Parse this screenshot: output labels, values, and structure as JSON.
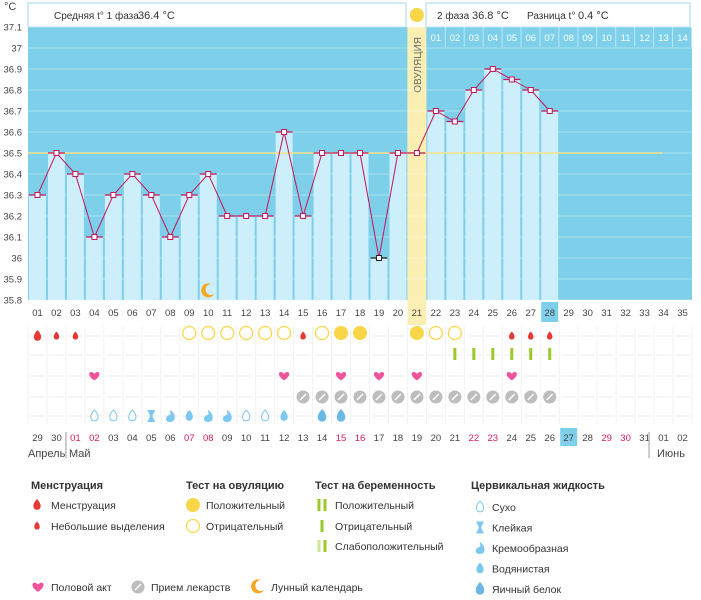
{
  "header": {
    "unit": "°C",
    "phase1_label": "Средняя t° 1 фаза",
    "phase1_value": "36.4 °C",
    "phase2_label": "2 фаза",
    "phase2_value": "36.8 °C",
    "diff_label": "Разница t°",
    "diff_value": "0.4 °C"
  },
  "ovulation_label": "ОВУЛЯЦИЯ",
  "chart_data": {
    "type": "line",
    "title": "",
    "ylabel": "°C",
    "ylim": [
      35.8,
      37.1
    ],
    "yticks": [
      "35.8",
      "35.9",
      "36",
      "36.1",
      "36.2",
      "36.3",
      "36.4",
      "36.5",
      "36.6",
      "36.7",
      "36.8",
      "36.9",
      "37",
      "37.1"
    ],
    "cycle_days": [
      "01",
      "02",
      "03",
      "04",
      "05",
      "06",
      "07",
      "08",
      "09",
      "10",
      "11",
      "12",
      "13",
      "14",
      "15",
      "16",
      "17",
      "18",
      "19",
      "20",
      "21",
      "22",
      "23",
      "24",
      "25",
      "26",
      "27",
      "28",
      "29",
      "30",
      "31",
      "32",
      "33",
      "34",
      "35"
    ],
    "top_days": [
      "01",
      "02",
      "03",
      "04",
      "05",
      "06",
      "07",
      "08",
      "09",
      "10",
      "11",
      "12",
      "13",
      "14"
    ],
    "temperatures": [
      36.3,
      36.5,
      36.4,
      36.1,
      36.3,
      36.4,
      36.3,
      36.1,
      36.3,
      36.4,
      36.2,
      36.2,
      36.2,
      36.6,
      36.2,
      36.5,
      36.5,
      36.5,
      36.0,
      36.5,
      36.5,
      36.7,
      36.65,
      36.8,
      36.9,
      36.85,
      36.8,
      36.7
    ],
    "coverline": 36.5,
    "ovulation_day": 21,
    "current_day": 28
  },
  "calendar": {
    "dates": [
      "29",
      "30",
      "01",
      "02",
      "03",
      "04",
      "05",
      "06",
      "07",
      "08",
      "09",
      "10",
      "11",
      "12",
      "13",
      "14",
      "15",
      "16",
      "17",
      "18",
      "19",
      "20",
      "21",
      "22",
      "23",
      "24",
      "25",
      "26",
      "27",
      "28",
      "29",
      "30",
      "31",
      "01",
      "02"
    ],
    "red_dates": [
      3,
      4,
      9,
      10,
      17,
      18,
      24,
      25,
      31,
      32
    ],
    "months": [
      "Апрель",
      "Май",
      "Июнь"
    ],
    "current_date_index": 28
  },
  "markers": {
    "menstruation_full": [
      1
    ],
    "menstruation_light": [
      2,
      3,
      15,
      26,
      27,
      28
    ],
    "ovulation_positive": [
      17,
      18,
      21
    ],
    "ovulation_negative": [
      9,
      10,
      11,
      12,
      13,
      14,
      16,
      22,
      23
    ],
    "pregnancy_negative": [
      23,
      24,
      25,
      26,
      27,
      28
    ],
    "intercourse": [
      4,
      14,
      17,
      19,
      21,
      26
    ],
    "medication": [
      15,
      16,
      17,
      18,
      19,
      20,
      21,
      22,
      23,
      24,
      25,
      26,
      27,
      28
    ],
    "moon": [
      10
    ],
    "fluid": [
      {
        "day": 4,
        "type": "dry"
      },
      {
        "day": 5,
        "type": "dry"
      },
      {
        "day": 6,
        "type": "dry"
      },
      {
        "day": 7,
        "type": "sticky"
      },
      {
        "day": 8,
        "type": "creamy"
      },
      {
        "day": 9,
        "type": "watery"
      },
      {
        "day": 10,
        "type": "creamy"
      },
      {
        "day": 11,
        "type": "creamy"
      },
      {
        "day": 12,
        "type": "dry"
      },
      {
        "day": 13,
        "type": "dry"
      },
      {
        "day": 14,
        "type": "watery"
      },
      {
        "day": 16,
        "type": "eggwhite"
      },
      {
        "day": 17,
        "type": "eggwhite"
      }
    ]
  },
  "legend": {
    "menstruation": {
      "title": "Менструация",
      "items": [
        "Менструация",
        "Небольшие выделения"
      ]
    },
    "ovulation_test": {
      "title": "Тест на овуляцию",
      "items": [
        "Положительный",
        "Отрицательный"
      ]
    },
    "pregnancy_test": {
      "title": "Тест на беременность",
      "items": [
        "Положительный",
        "Отрицательный",
        "Слабоположительный"
      ]
    },
    "cervical": {
      "title": "Цервикальная жидкость",
      "items": [
        "Сухо",
        "Клейкая",
        "Кремообразная",
        "Водянистая",
        "Яичный белок"
      ]
    },
    "bottom": [
      "Половой акт",
      "Прием лекарств",
      "Лунный календарь"
    ]
  },
  "colors": {
    "phase_bg": "#7dcfea",
    "bar": "#cdeefb",
    "line": "#c2185b",
    "ovulation_band": "#fcefb4",
    "coverline": "#f4e48a",
    "red": "#e53935",
    "yellow": "#f9d648",
    "green": "#9cc92a",
    "pink": "#f0529c",
    "grey": "#bdbdbd",
    "blue": "#7ec8ef",
    "orange": "#f5a623"
  }
}
